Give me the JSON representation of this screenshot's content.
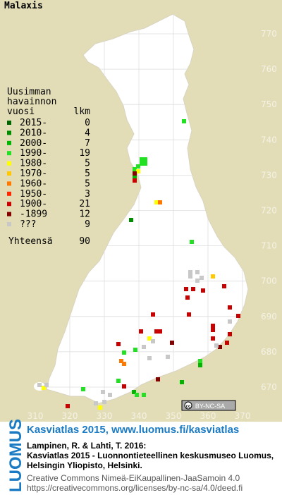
{
  "title": "Malaxis",
  "legend": {
    "heading": [
      "Uusimman",
      "havainnon",
      "vuosi"
    ],
    "count_heading": "lkm",
    "rows": [
      {
        "label": "2015-",
        "count": 0,
        "color": "#006400"
      },
      {
        "label": "2010-",
        "count": 4,
        "color": "#008c00"
      },
      {
        "label": "2000-",
        "count": 7,
        "color": "#00b400"
      },
      {
        "label": "1990-",
        "count": 19,
        "color": "#22e022"
      },
      {
        "label": "1980-",
        "count": 5,
        "color": "#ffff00"
      },
      {
        "label": "1970-",
        "count": 5,
        "color": "#ffc800"
      },
      {
        "label": "1960-",
        "count": 5,
        "color": "#ff7800"
      },
      {
        "label": "1950-",
        "count": 3,
        "color": "#ff2800"
      },
      {
        "label": "1900-",
        "count": 21,
        "color": "#c80000"
      },
      {
        "label": "-1899",
        "count": 12,
        "color": "#820000"
      },
      {
        "label": "???",
        "count": 9,
        "color": "#c8c8c8"
      }
    ],
    "total": {
      "label": "Yhteensä",
      "count": 90
    }
  },
  "axes": {
    "northing": [
      770,
      760,
      750,
      740,
      730,
      720,
      710,
      700,
      690,
      680,
      670
    ],
    "easting": [
      310,
      320,
      330,
      340,
      350,
      360,
      370
    ]
  },
  "badge": "BY-NC-SA",
  "footer": {
    "logo": "LUOMUS",
    "link": "Kasviatlas 2015, www.luomus.fi/kasviatlas",
    "citation": [
      "Lampinen, R. & Lahti, T. 2016:",
      "Kasviatlas 2015 - Luonnontieteellinen keskusmuseo Luomus,",
      "Helsingin Yliopisto, Helsinki."
    ],
    "license": [
      "Creative Commons Nimeä-EiKaupallinen-JaaSamoin 4.0",
      "https://creativecommons.org/licenses/by-nc-sa/4.0/deed.fi"
    ]
  }
}
